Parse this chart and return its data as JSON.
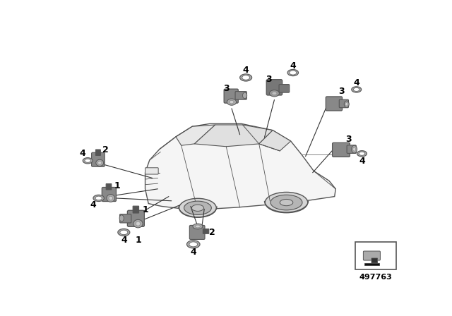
{
  "part_number": "497763",
  "bg_color": "#ffffff",
  "car_outline_color": "#555555",
  "sensor_body_color": "#888888",
  "sensor_dark_color": "#555555",
  "sensor_face_color": "#aaaaaa",
  "ring_outer_color": "#aaaaaa",
  "ring_inner_color": "#ffffff",
  "line_color": "#333333",
  "label_color": "#000000",
  "label_fontsize": 9,
  "label_fontweight": "bold"
}
